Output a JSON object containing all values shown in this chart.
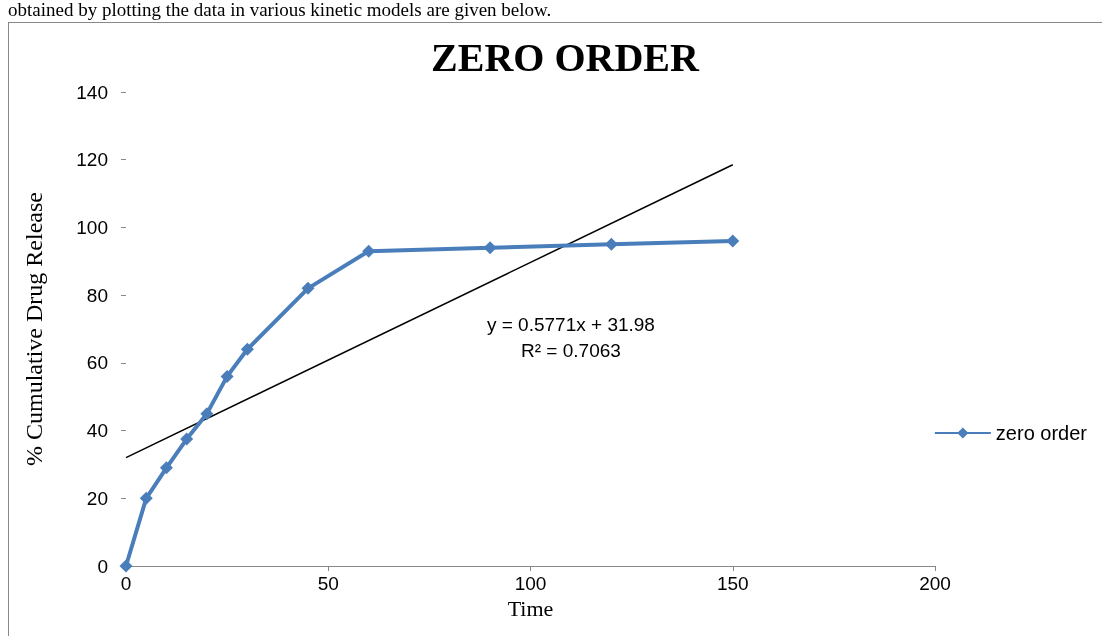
{
  "chart_data": {
    "type": "line",
    "title": "ZERO ORDER",
    "xlabel": "Time",
    "ylabel": "% Cumulative Drug Release",
    "x": [
      0,
      5,
      10,
      15,
      20,
      25,
      30,
      45,
      60,
      90,
      120,
      150
    ],
    "series": [
      {
        "name": "zero order",
        "color": "#4a7ebb",
        "marker": "diamond",
        "values": [
          0,
          20,
          29,
          37.5,
          45,
          56,
          64,
          82,
          93,
          94,
          95,
          96
        ]
      },
      {
        "type": "line",
        "color": "#000000",
        "marker": "none",
        "x": [
          0,
          150
        ],
        "values": [
          32,
          118.5
        ]
      }
    ],
    "xlim": [
      0,
      200
    ],
    "xticks": [
      0,
      50,
      100,
      150,
      200
    ],
    "ylim": [
      0,
      140
    ],
    "yticks": [
      0,
      20,
      40,
      60,
      80,
      100,
      120,
      140
    ],
    "grid": false,
    "legend": "right",
    "line_style": "solid",
    "annotations": [
      "obtained by plotting the data in various kinetic models are given below.",
      "y = 0.5771x + 31.98",
      "R² = 0.7063"
    ]
  }
}
